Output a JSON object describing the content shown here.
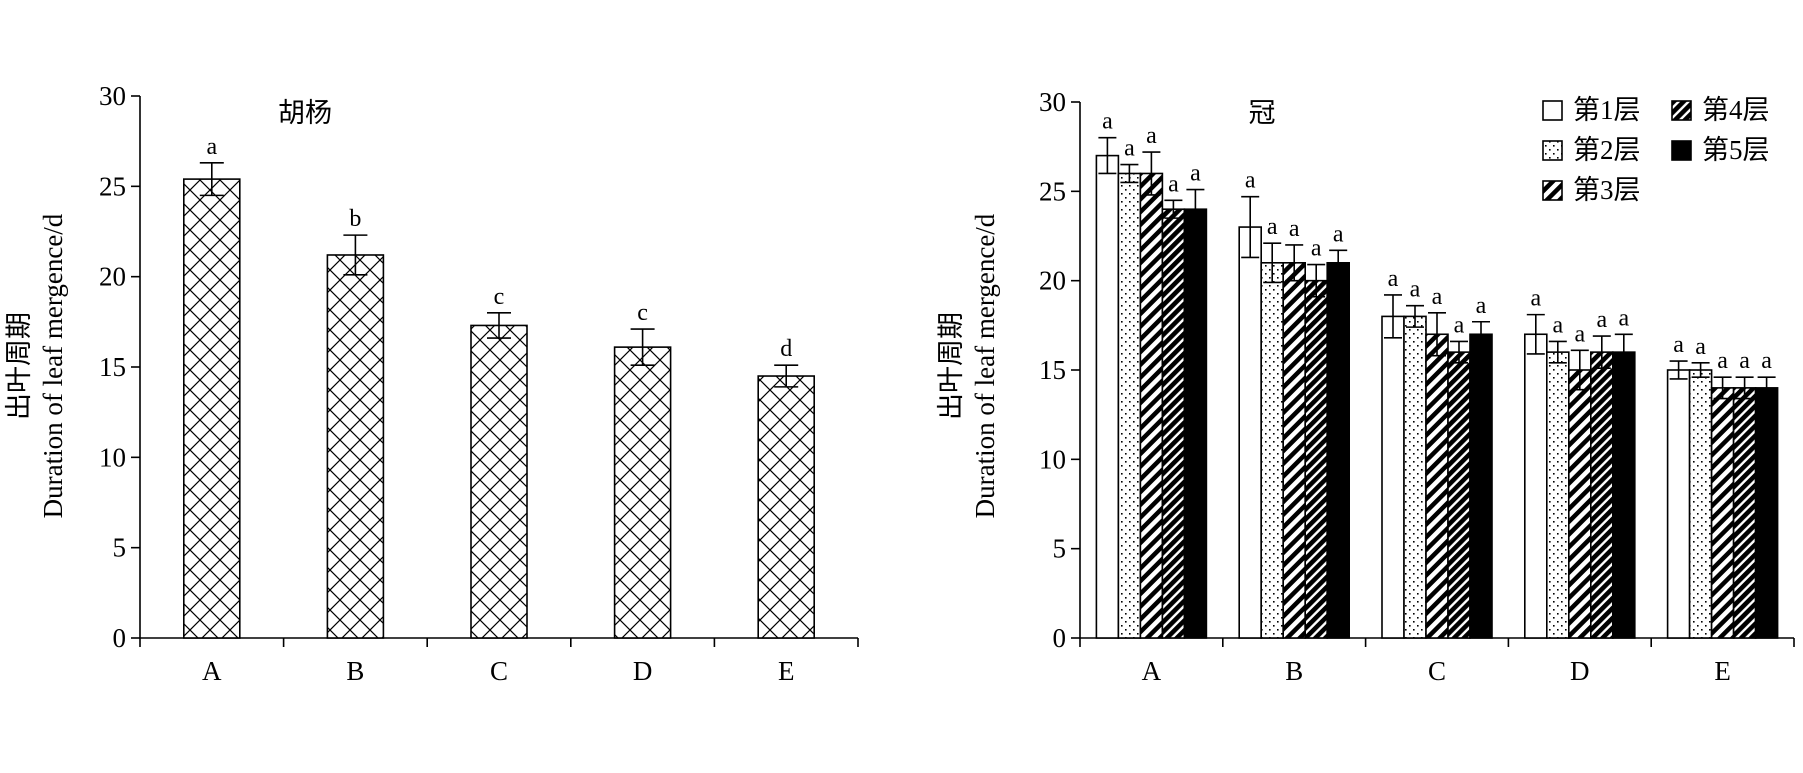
{
  "chart_data": [
    {
      "type": "bar",
      "title": "胡杨",
      "ylabel_cn": "出叶周期",
      "ylabel_en": "Duration of leaf mergence/d",
      "categories": [
        "A",
        "B",
        "C",
        "D",
        "E"
      ],
      "ylim": [
        0,
        30
      ],
      "yticks": [
        0,
        5,
        10,
        15,
        20,
        25,
        30
      ],
      "fill_pattern": "crosshatch",
      "series": [
        {
          "values": [
            25.4,
            21.2,
            17.3,
            16.1,
            14.5
          ],
          "errors": [
            0.9,
            1.1,
            0.7,
            1.0,
            0.6
          ],
          "labels": [
            "a",
            "b",
            "c",
            "c",
            "d"
          ]
        }
      ]
    },
    {
      "type": "bar",
      "title": "冠",
      "ylabel_cn": "出叶周期",
      "ylabel_en": "Duration of leaf mergence/d",
      "categories": [
        "A",
        "B",
        "C",
        "D",
        "E"
      ],
      "ylim": [
        0,
        30
      ],
      "yticks": [
        0,
        5,
        10,
        15,
        20,
        25,
        30
      ],
      "legend_position": "top-right",
      "series": [
        {
          "name": "第1层",
          "pattern": "white",
          "values": [
            27.0,
            23.0,
            18.0,
            17.0,
            15.0
          ],
          "errors": [
            1.0,
            1.7,
            1.2,
            1.1,
            0.5
          ],
          "labels": [
            "a",
            "a",
            "a",
            "a",
            "a"
          ]
        },
        {
          "name": "第2层",
          "pattern": "dots",
          "values": [
            26.0,
            21.0,
            18.0,
            16.0,
            15.0
          ],
          "errors": [
            0.5,
            1.1,
            0.6,
            0.6,
            0.4
          ],
          "labels": [
            "a",
            "a",
            "a",
            "a",
            "a"
          ]
        },
        {
          "name": "第3层",
          "pattern": "diag-light",
          "values": [
            26.0,
            21.0,
            17.0,
            15.0,
            14.0
          ],
          "errors": [
            1.2,
            1.0,
            1.2,
            1.1,
            0.6
          ],
          "labels": [
            "a",
            "a",
            "a",
            "a",
            "a"
          ]
        },
        {
          "name": "第4层",
          "pattern": "diag-dense",
          "values": [
            24.0,
            20.0,
            16.0,
            16.0,
            14.0
          ],
          "errors": [
            0.5,
            0.9,
            0.6,
            0.9,
            0.6
          ],
          "labels": [
            "a",
            "a",
            "a",
            "a",
            "a"
          ]
        },
        {
          "name": "第5层",
          "pattern": "black",
          "values": [
            24.0,
            21.0,
            17.0,
            16.0,
            14.0
          ],
          "errors": [
            1.1,
            0.7,
            0.7,
            1.0,
            0.6
          ],
          "labels": [
            "a",
            "a",
            "a",
            "a",
            "a"
          ]
        }
      ]
    }
  ]
}
